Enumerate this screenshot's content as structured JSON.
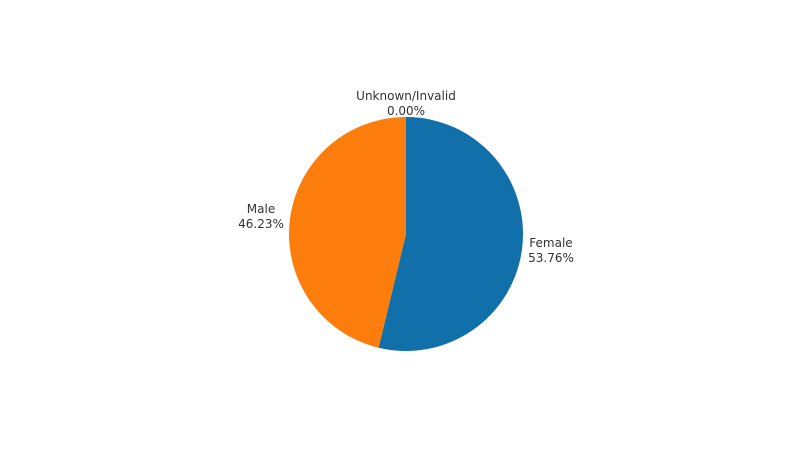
{
  "chart_data": {
    "type": "pie",
    "start_angle_deg": 0,
    "direction": "clockwise",
    "slices": [
      {
        "label": "Female",
        "value": 53.76,
        "value_label": "53.76%",
        "color": "#1170aa"
      },
      {
        "label": "Male",
        "value": 46.23,
        "value_label": "46.23%",
        "color": "#fc7d0b"
      },
      {
        "label": "Unknown/Invalid",
        "value": 0.0,
        "value_label": "0.00%",
        "color": "#a3acb9"
      }
    ]
  }
}
